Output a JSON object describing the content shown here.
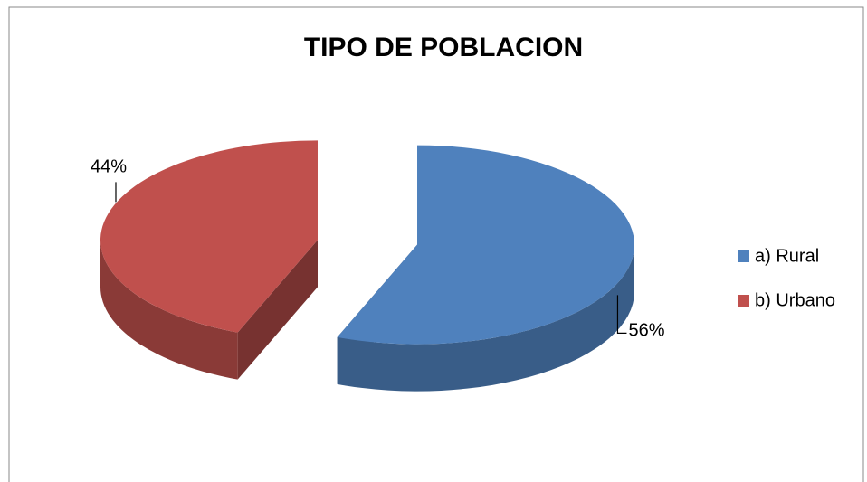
{
  "chart_data": {
    "type": "pie",
    "title": "TIPO DE POBLACION",
    "categories": [
      "a) Rural",
      "b) Urbano"
    ],
    "values": [
      56,
      44
    ],
    "value_labels": [
      "56%",
      "44%"
    ],
    "colors": [
      "#4f81bd",
      "#c0504d"
    ],
    "legend": "right"
  }
}
